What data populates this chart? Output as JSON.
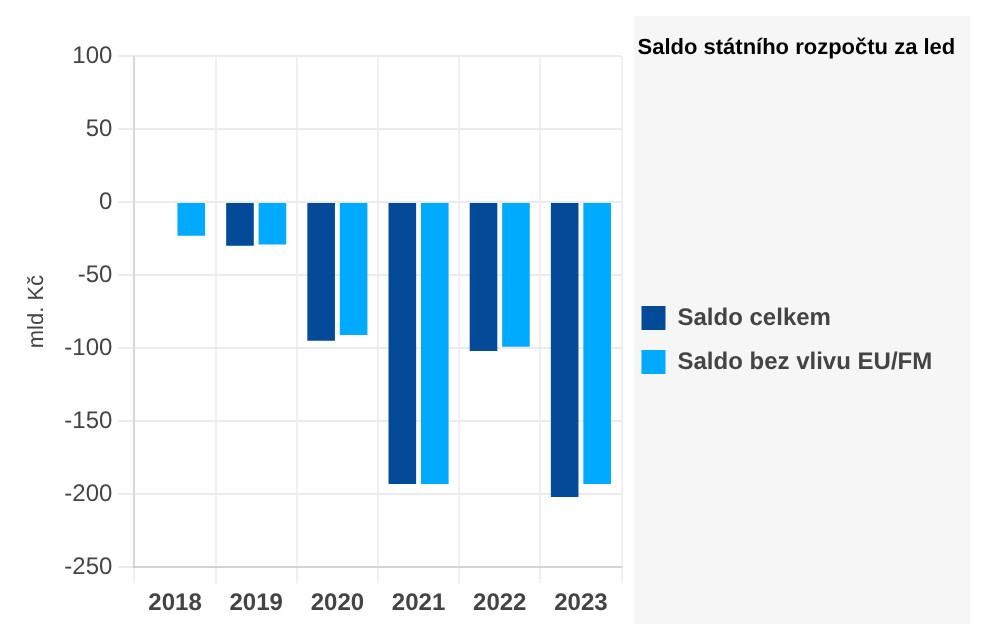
{
  "chart_data": {
    "type": "bar",
    "title": "Saldo státního rozpočtu za led",
    "ylabel": "mld. Kč",
    "categories": [
      "2018",
      "2019",
      "2020",
      "2021",
      "2022",
      "2023"
    ],
    "series": [
      {
        "name": "Saldo celkem",
        "color": "#034a98",
        "values": [
          null,
          -30,
          -95,
          -193,
          -102,
          -202
        ]
      },
      {
        "name": "Saldo bez vlivu EU/FM",
        "color": "#00aaff",
        "values": [
          -23,
          -29,
          -91,
          -193,
          -99,
          -193
        ]
      }
    ],
    "ylim": [
      -250,
      100
    ],
    "yticks": [
      -250,
      -200,
      -150,
      -100,
      -50,
      0,
      50,
      100
    ],
    "grid": true,
    "legend": "right"
  }
}
